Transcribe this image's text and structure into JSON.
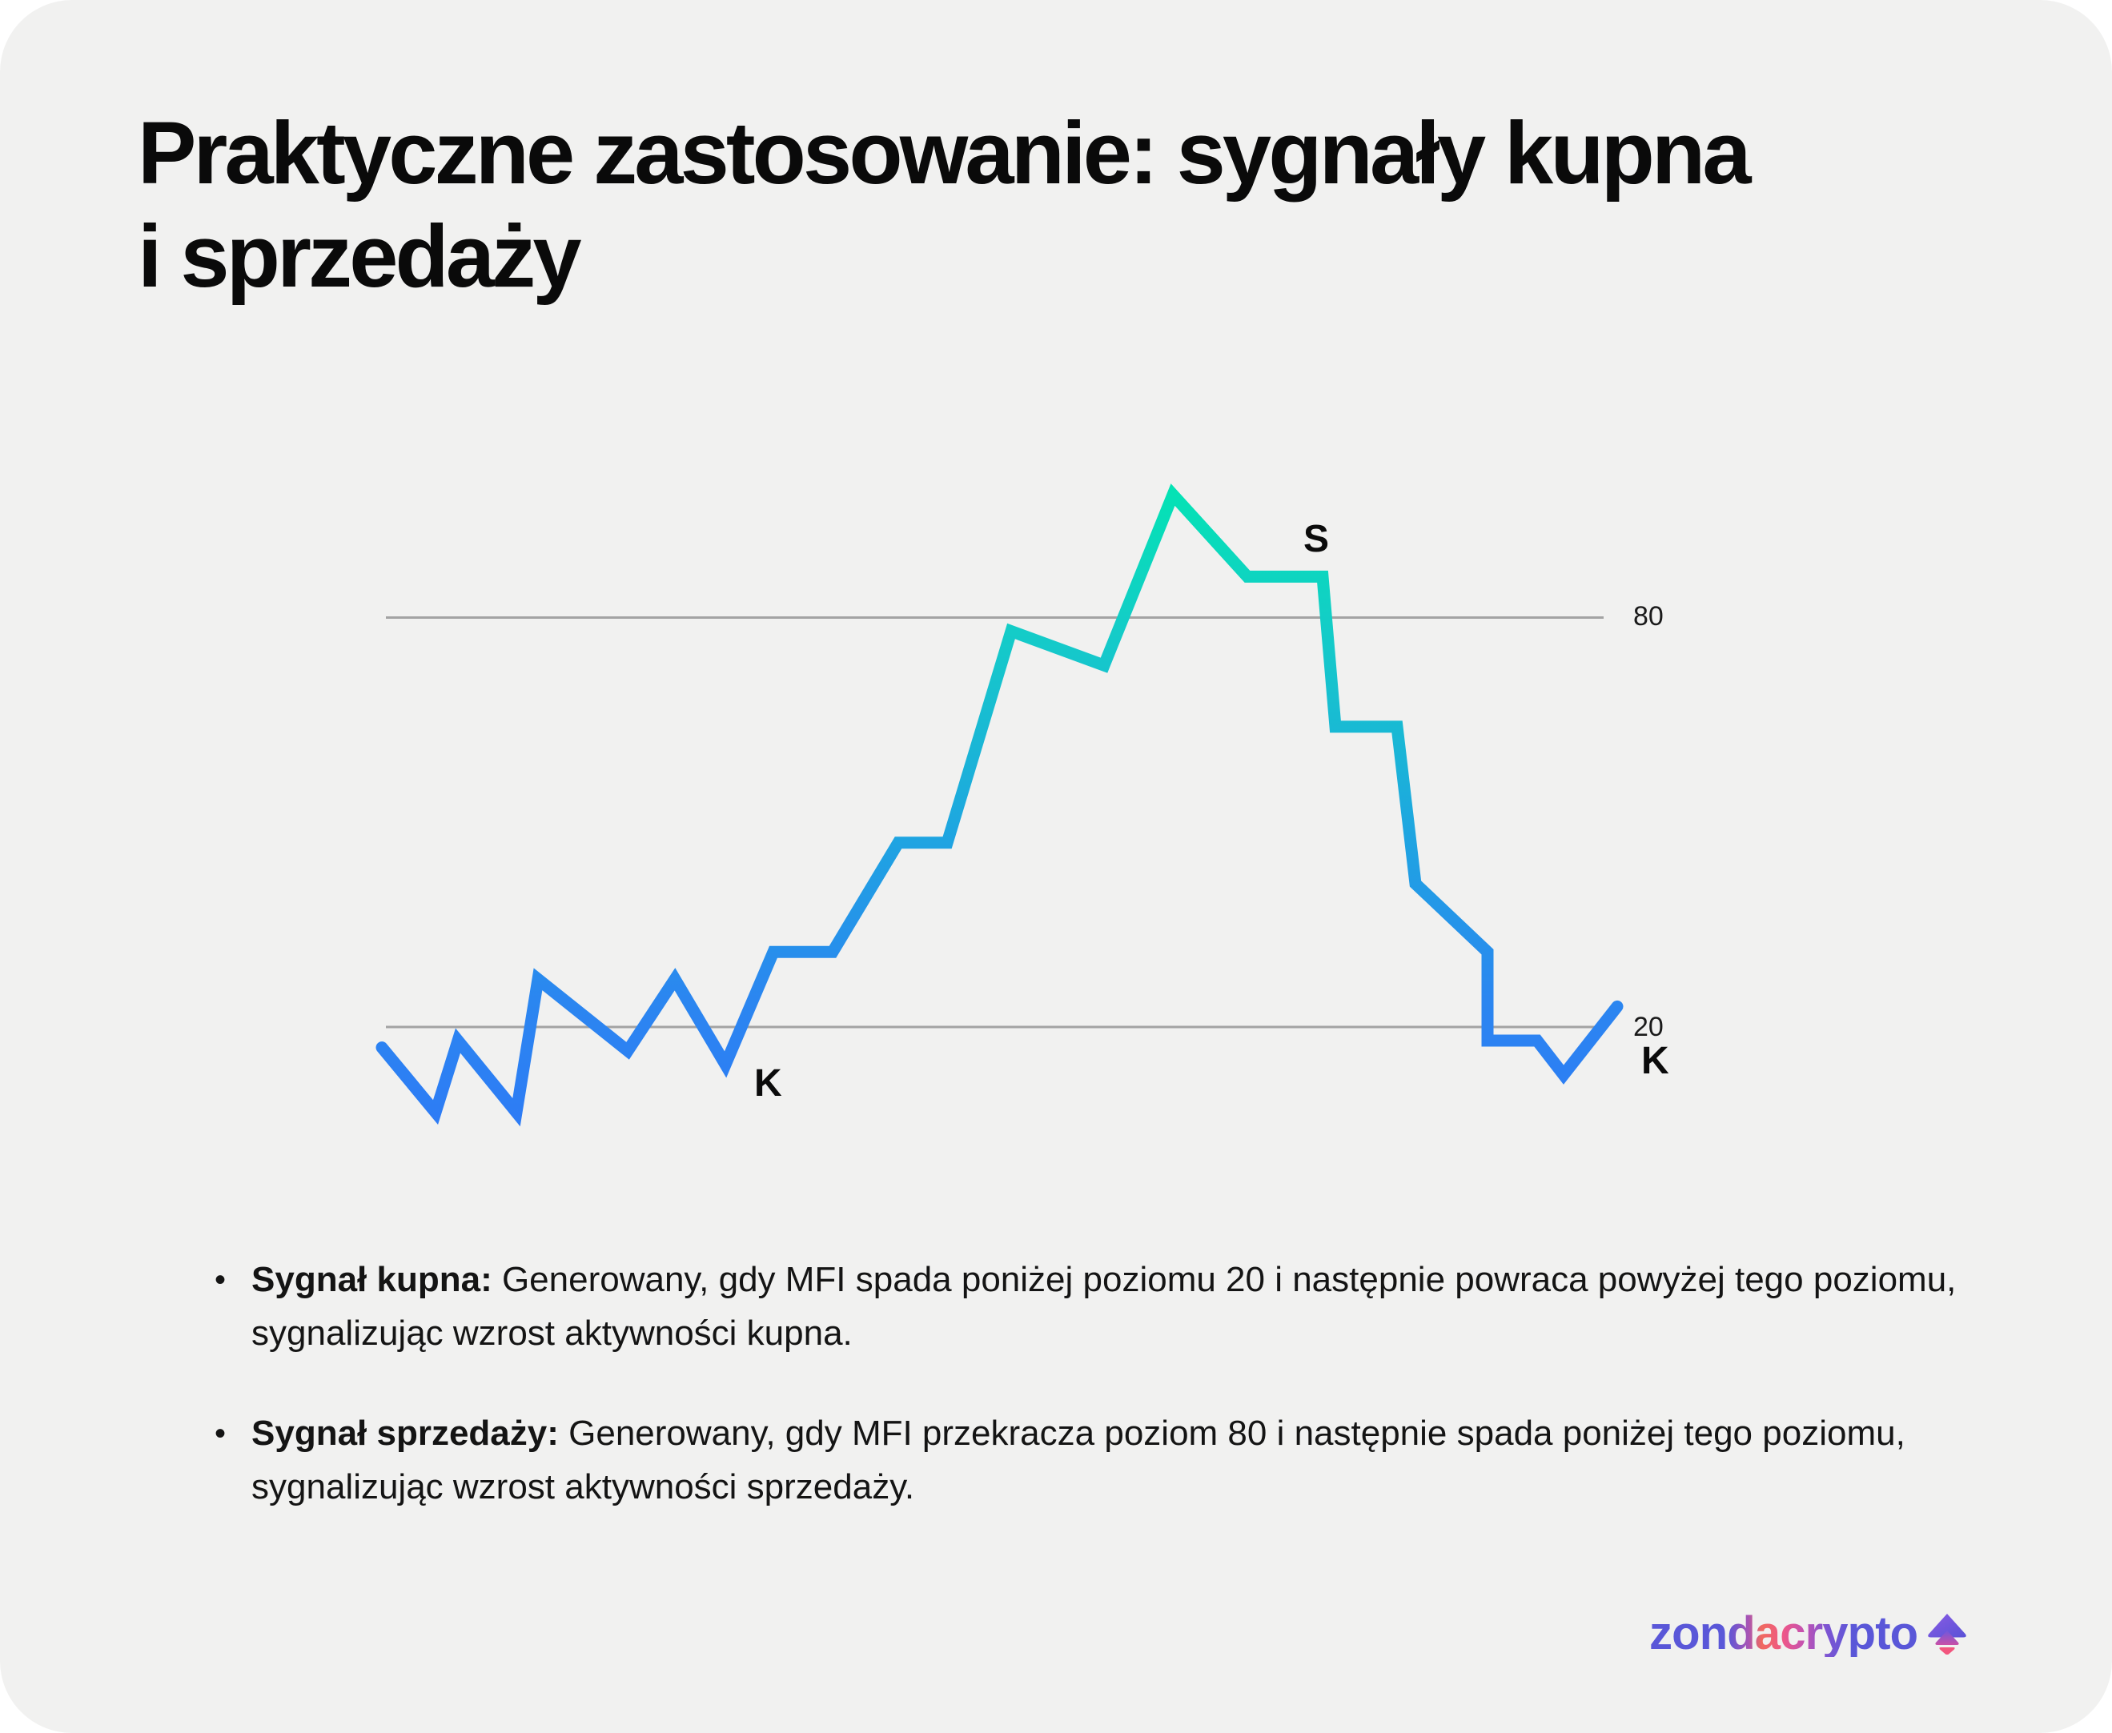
{
  "title": {
    "line1": "Praktyczne zastosowanie: sygnały kupna",
    "line2": "i sprzedaży"
  },
  "chart": {
    "sell_signal_label": "S",
    "buy_signal_label": "K"
  },
  "chart_data": {
    "type": "line",
    "title": "",
    "xlabel": "",
    "ylabel": "",
    "ylim": [
      0,
      105
    ],
    "grid": false,
    "levels": {
      "overbought": 80,
      "oversold": 20
    },
    "level_labels": [
      "80",
      "20"
    ],
    "line_colors": {
      "top": "#03e4b3",
      "upper_mid": "#14ccc8",
      "mid": "#1fa3e2",
      "lower_mid": "#2b86f0",
      "bottom": "#2e7af6"
    },
    "level_line_color": "#a3a3a3",
    "series": [
      {
        "name": "MFI",
        "x_fraction": [
          0,
          0.0434,
          0.0616,
          0.1089,
          0.1264,
          0.199,
          0.2372,
          0.2781,
          0.3169,
          0.3649,
          0.418,
          0.4576,
          0.5094,
          0.5846,
          0.6403,
          0.7006,
          0.7615,
          0.7719,
          0.8218,
          0.8367,
          0.895,
          0.895,
          0.9352,
          0.9566,
          1.0
        ],
        "values": [
          17,
          7.5,
          18,
          7.5,
          27,
          16.5,
          27,
          14.5,
          31,
          31,
          47,
          47,
          78,
          73,
          98,
          86,
          86,
          64,
          64,
          41,
          31,
          18,
          18,
          13,
          23
        ]
      }
    ],
    "annotations": [
      "K",
      "S",
      "K"
    ]
  },
  "bullets": {
    "marker": "•",
    "items": [
      {
        "lead": "Sygnał kupna:",
        "text": " Generowany, gdy MFI spada poniżej poziomu 20 i następnie powraca powyżej tego poziomu, sygnalizując wzrost aktywności kupna."
      },
      {
        "lead": "Sygnał sprzedaży:",
        "text": " Generowany, gdy MFI przekracza poziom 80 i następnie spada poniżej tego poziomu, sygnalizując wzrost aktywności sprzedaży."
      }
    ]
  },
  "logo": {
    "wordmark": "zondacrypto"
  }
}
